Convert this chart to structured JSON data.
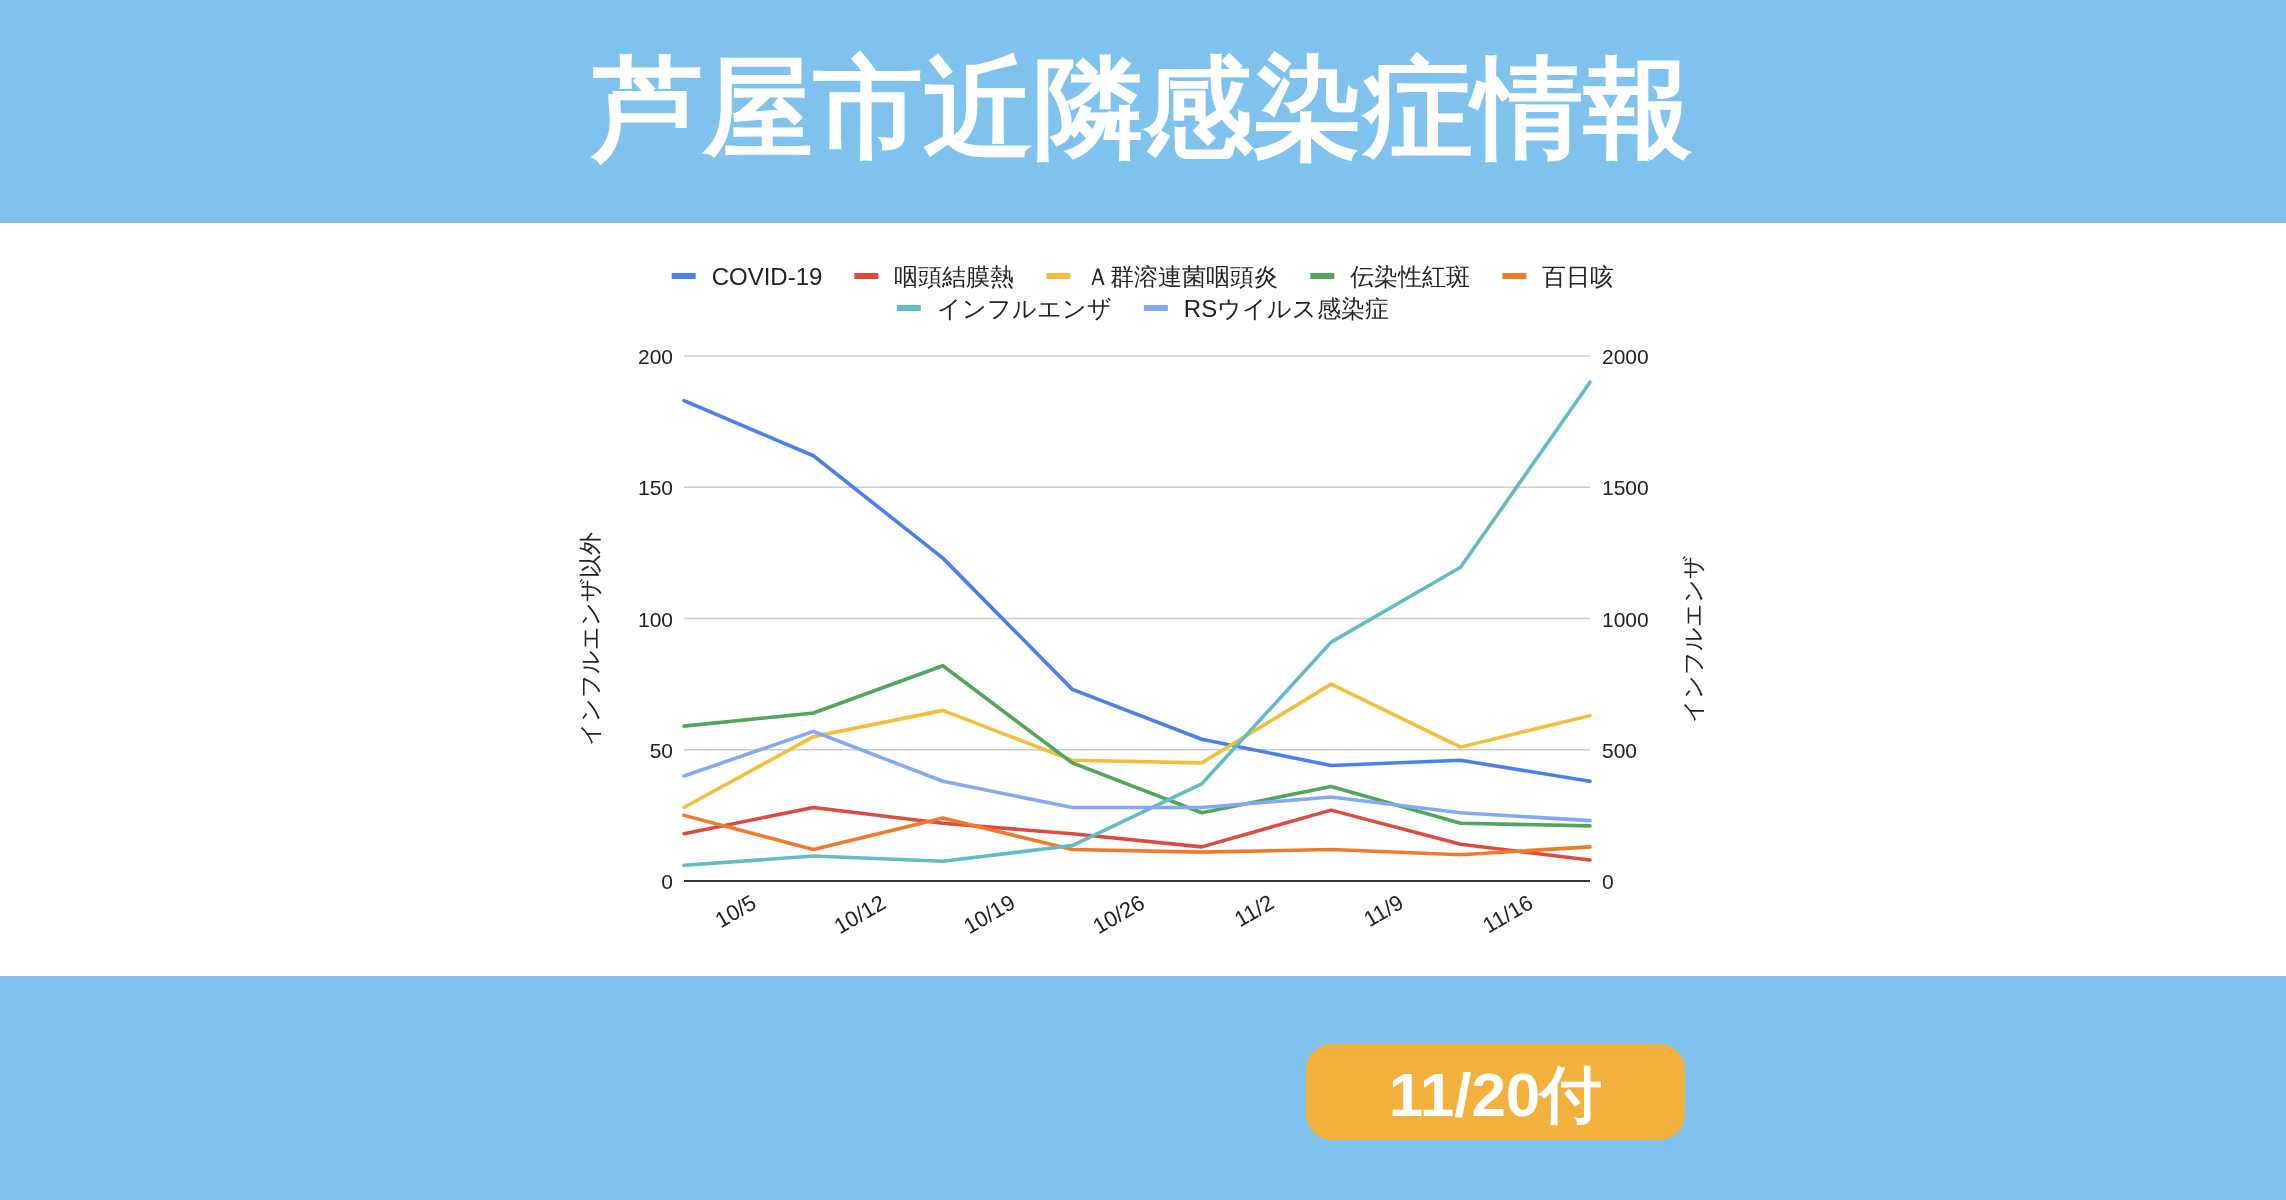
{
  "chart_data": {
    "type": "line",
    "title": "芦屋市近隣感染症情報",
    "annotations": [
      "11/20付"
    ],
    "ylabel": "インフルエンザ以外",
    "y2label": "インフルエンザ",
    "x": [
      "--10-01",
      "--10-08",
      "--10-15",
      "--10-22",
      "--10-29",
      "--11-05",
      "--11-12",
      "--11-19"
    ],
    "xlim": [
      "--10-01",
      "--11-19"
    ],
    "xticks": [
      {
        "value": "--10-05",
        "label": "10/5"
      },
      {
        "value": "--10-12",
        "label": "10/12"
      },
      {
        "value": "--10-19",
        "label": "10/19"
      },
      {
        "value": "--10-26",
        "label": "10/26"
      },
      {
        "value": "--11-02",
        "label": "11/2"
      },
      {
        "value": "--11-09",
        "label": "11/9"
      },
      {
        "value": "--11-16",
        "label": "11/16"
      }
    ],
    "ylim": [
      0,
      200
    ],
    "yticks": [
      0,
      50,
      100,
      150,
      200
    ],
    "y2lim": [
      0,
      2000
    ],
    "y2ticks": [
      0,
      500,
      1000,
      1500,
      2000
    ],
    "grid": "y",
    "legend": "top",
    "line_style": "solid",
    "series": [
      {
        "name": "COVID-19",
        "color": "#4a80ee",
        "values": [
          183,
          162,
          123,
          73,
          54,
          44,
          46,
          38
        ]
      },
      {
        "name": "咽頭結膜熱",
        "color": "#dd4b3e",
        "values": [
          18,
          28,
          22,
          18,
          13,
          27,
          14,
          8
        ]
      },
      {
        "name": "Ａ群溶連菌咽頭炎",
        "color": "#f3be3c",
        "values": [
          28,
          55,
          65,
          46,
          45,
          75,
          51,
          63
        ]
      },
      {
        "name": "伝染性紅斑",
        "color": "#52a65a",
        "values": [
          59,
          64,
          82,
          45,
          26,
          36,
          22,
          21
        ]
      },
      {
        "name": "百日咳",
        "color": "#f07a2c",
        "values": [
          25,
          12,
          24,
          12,
          11,
          12,
          10,
          13
        ]
      },
      {
        "name": "インフルエンザ",
        "color": "#61bcc3",
        "axis": "y2",
        "values": [
          60,
          95,
          75,
          135,
          370,
          910,
          1195,
          1900
        ]
      },
      {
        "name": "RSウイルス感染症",
        "color": "#83a9f3",
        "values": [
          40,
          57,
          38,
          28,
          28,
          32,
          26,
          23
        ]
      }
    ]
  }
}
